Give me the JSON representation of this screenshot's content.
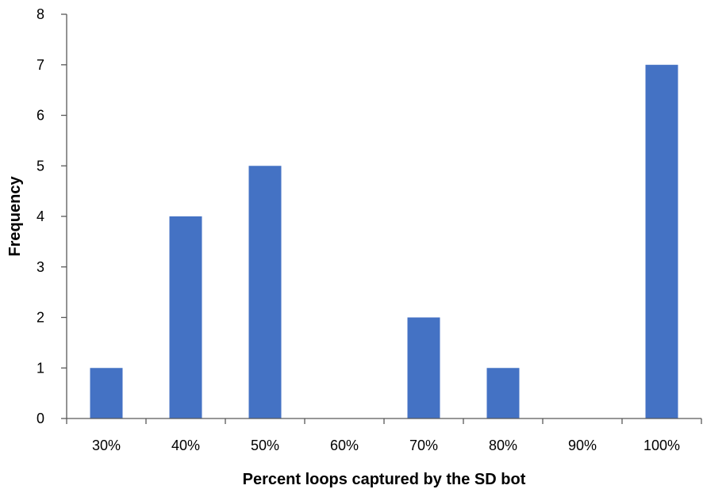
{
  "chart_data": {
    "type": "bar",
    "title": "",
    "xlabel": "Percent loops captured by the SD bot",
    "ylabel": "Frequency",
    "categories": [
      "30%",
      "40%",
      "50%",
      "60%",
      "70%",
      "80%",
      "90%",
      "100%"
    ],
    "series": [
      {
        "values": [
          1,
          4,
          5,
          0,
          2,
          1,
          0,
          7
        ],
        "color": "#4472C4"
      }
    ],
    "ylim": [
      0,
      8
    ],
    "yticks": [
      "0",
      "1",
      "2",
      "3",
      "4",
      "5",
      "6",
      "7",
      "8"
    ],
    "grid": false,
    "legend": "none"
  }
}
